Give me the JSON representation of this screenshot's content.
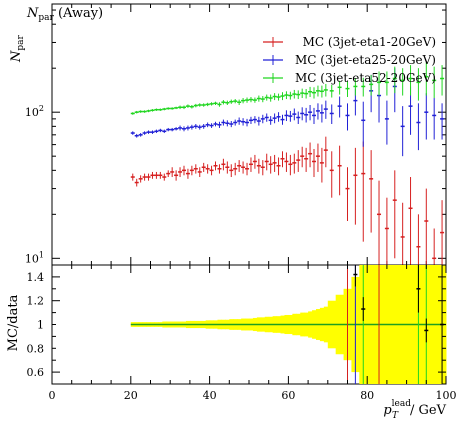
{
  "chart_data": [
    {
      "type": "scatter",
      "title_main": "N",
      "title_sub": "par",
      "title_rest": " (Away)",
      "ylabel_main": "N",
      "ylabel_sub": "par",
      "yscale": "log",
      "ylim": [
        9,
        550
      ],
      "xlim": [
        0,
        100
      ],
      "ytick_labels": [
        {
          "value": 10,
          "base": "10",
          "exp": "1"
        },
        {
          "value": 100,
          "base": "10",
          "exp": "2"
        }
      ],
      "legend_position": "top-right",
      "series": [
        {
          "name": "MC (3jet-eta1-20GeV)",
          "color": "#d62020",
          "x": [
            20.5,
            21.5,
            22.5,
            23.5,
            24.5,
            25.5,
            26.5,
            27.5,
            28.5,
            29.5,
            30.5,
            31.5,
            32.5,
            33.5,
            34.5,
            35.5,
            36.5,
            37.5,
            38.5,
            39.5,
            40.5,
            41.5,
            42.5,
            43.5,
            44.5,
            45.5,
            46.5,
            47.5,
            48.5,
            49.5,
            50.5,
            51.5,
            52.5,
            53.5,
            54.5,
            55.5,
            56.5,
            57.5,
            58.5,
            59.5,
            60.5,
            61.5,
            62.5,
            63.5,
            64.5,
            65.5,
            66.5,
            67.5,
            68.5,
            69.5,
            71,
            73,
            75,
            77,
            79,
            81,
            83,
            85,
            87,
            89,
            91,
            93,
            95,
            97,
            99
          ],
          "y": [
            36,
            33,
            35,
            36,
            36,
            37,
            37,
            37,
            36,
            38,
            39,
            37,
            39,
            40,
            38,
            40,
            41,
            39,
            42,
            41,
            40,
            43,
            41,
            44,
            42,
            40,
            41,
            43,
            42,
            41,
            44,
            46,
            43,
            42,
            46,
            44,
            45,
            43,
            48,
            46,
            44,
            45,
            47,
            50,
            48,
            52,
            46,
            50,
            45,
            55,
            40,
            43,
            30,
            37,
            38,
            35,
            20,
            16,
            25,
            14,
            22,
            12,
            18,
            10,
            15
          ],
          "err": [
            2,
            2,
            2,
            2,
            2,
            2,
            2,
            2,
            2,
            2,
            3,
            3,
            3,
            3,
            3,
            3,
            3,
            3,
            3,
            3,
            3,
            3,
            3,
            4,
            4,
            4,
            4,
            4,
            4,
            4,
            5,
            5,
            5,
            5,
            6,
            6,
            6,
            6,
            6,
            7,
            7,
            7,
            8,
            8,
            9,
            10,
            10,
            11,
            12,
            13,
            14,
            16,
            12,
            20,
            25,
            20,
            14,
            10,
            15,
            10,
            14,
            8,
            12,
            6,
            10
          ]
        },
        {
          "name": "MC (3jet-eta25-20GeV)",
          "color": "#2020d6",
          "x": [
            20.5,
            21.5,
            22.5,
            23.5,
            24.5,
            25.5,
            26.5,
            27.5,
            28.5,
            29.5,
            30.5,
            31.5,
            32.5,
            33.5,
            34.5,
            35.5,
            36.5,
            37.5,
            38.5,
            39.5,
            40.5,
            41.5,
            42.5,
            43.5,
            44.5,
            45.5,
            46.5,
            47.5,
            48.5,
            49.5,
            50.5,
            51.5,
            52.5,
            53.5,
            54.5,
            55.5,
            56.5,
            57.5,
            58.5,
            59.5,
            60.5,
            61.5,
            62.5,
            63.5,
            64.5,
            65.5,
            66.5,
            67.5,
            68.5,
            69.5,
            71,
            73,
            75,
            77,
            79,
            81,
            83,
            85,
            87,
            89,
            91,
            93,
            95,
            97,
            99
          ],
          "y": [
            72,
            69,
            70,
            72,
            73,
            73,
            74,
            75,
            74,
            76,
            76,
            77,
            78,
            77,
            78,
            79,
            80,
            79,
            80,
            82,
            81,
            83,
            82,
            85,
            84,
            83,
            85,
            87,
            86,
            85,
            88,
            89,
            87,
            90,
            92,
            88,
            91,
            93,
            89,
            95,
            94,
            97,
            92,
            98,
            96,
            100,
            95,
            102,
            99,
            105,
            98,
            110,
            95,
            120,
            88,
            140,
            130,
            90,
            150,
            80,
            110,
            85,
            100,
            95,
            90
          ],
          "err": [
            2,
            2,
            2,
            2,
            2,
            2,
            2,
            2,
            2,
            2,
            2,
            2,
            3,
            3,
            3,
            3,
            3,
            3,
            3,
            3,
            3,
            3,
            4,
            4,
            4,
            4,
            4,
            5,
            5,
            5,
            5,
            5,
            6,
            6,
            6,
            6,
            7,
            7,
            7,
            8,
            8,
            9,
            9,
            10,
            11,
            12,
            12,
            13,
            14,
            15,
            15,
            18,
            20,
            25,
            30,
            40,
            45,
            30,
            50,
            30,
            40,
            30,
            35,
            30,
            25
          ]
        },
        {
          "name": "MC (3jet-eta52-20GeV)",
          "color": "#20d620",
          "x": [
            20.5,
            21.5,
            22.5,
            23.5,
            24.5,
            25.5,
            26.5,
            27.5,
            28.5,
            29.5,
            30.5,
            31.5,
            32.5,
            33.5,
            34.5,
            35.5,
            36.5,
            37.5,
            38.5,
            39.5,
            40.5,
            41.5,
            42.5,
            43.5,
            44.5,
            45.5,
            46.5,
            47.5,
            48.5,
            49.5,
            50.5,
            51.5,
            52.5,
            53.5,
            54.5,
            55.5,
            56.5,
            57.5,
            58.5,
            59.5,
            60.5,
            61.5,
            62.5,
            63.5,
            64.5,
            65.5,
            66.5,
            67.5,
            68.5,
            69.5,
            71,
            73,
            75,
            77,
            79,
            81,
            83,
            85,
            87,
            89,
            91,
            93,
            95,
            97,
            99
          ],
          "y": [
            98,
            100,
            101,
            101,
            102,
            103,
            104,
            104,
            105,
            106,
            106,
            107,
            108,
            108,
            110,
            109,
            111,
            112,
            112,
            113,
            114,
            115,
            113,
            117,
            116,
            118,
            119,
            117,
            120,
            121,
            122,
            121,
            124,
            123,
            126,
            125,
            128,
            127,
            129,
            131,
            130,
            133,
            132,
            135,
            134,
            138,
            136,
            140,
            139,
            142,
            140,
            148,
            145,
            150,
            150,
            155,
            160,
            160,
            170,
            165,
            170,
            160,
            175,
            165,
            170
          ],
          "err": [
            2,
            2,
            2,
            2,
            2,
            2,
            2,
            2,
            2,
            2,
            2,
            2,
            3,
            3,
            3,
            3,
            3,
            3,
            3,
            3,
            3,
            3,
            4,
            4,
            4,
            4,
            4,
            5,
            5,
            5,
            5,
            5,
            6,
            6,
            6,
            7,
            7,
            7,
            8,
            8,
            8,
            9,
            9,
            10,
            10,
            11,
            12,
            12,
            13,
            14,
            14,
            16,
            18,
            20,
            22,
            25,
            30,
            30,
            35,
            35,
            40,
            40,
            45,
            40,
            40
          ]
        }
      ]
    },
    {
      "type": "scatter",
      "ylabel": "MC/data",
      "ylim": [
        0.5,
        1.5
      ],
      "xlim": [
        0,
        100
      ],
      "yticks": [
        "0.6",
        "0.8",
        "1",
        "1.2",
        "1.4"
      ],
      "xticks": [
        "0",
        "20",
        "40",
        "60",
        "80",
        "100"
      ],
      "xlabel_main": "p",
      "xlabel_sub": "T",
      "xlabel_sup": "lead",
      "xlabel_unit": "/ GeV",
      "reference_line": 1.0,
      "reference_color": "#20a020",
      "band_color": "#ffff00",
      "band": {
        "x": [
          20.5,
          21.5,
          22.5,
          23.5,
          24.5,
          25.5,
          26.5,
          27.5,
          28.5,
          29.5,
          30.5,
          31.5,
          32.5,
          33.5,
          34.5,
          35.5,
          36.5,
          37.5,
          38.5,
          39.5,
          40.5,
          41.5,
          42.5,
          43.5,
          44.5,
          45.5,
          46.5,
          47.5,
          48.5,
          49.5,
          50.5,
          51.5,
          52.5,
          53.5,
          54.5,
          55.5,
          56.5,
          57.5,
          58.5,
          59.5,
          60.5,
          61.5,
          62.5,
          63.5,
          64.5,
          65.5,
          66.5,
          67.5,
          68.5,
          69.5,
          71,
          73,
          75,
          77,
          79,
          81,
          83,
          85,
          87,
          89,
          91,
          93,
          95,
          97,
          99
        ],
        "half_width": [
          0.02,
          0.02,
          0.02,
          0.02,
          0.02,
          0.02,
          0.02,
          0.02,
          0.025,
          0.025,
          0.025,
          0.025,
          0.025,
          0.025,
          0.03,
          0.03,
          0.03,
          0.03,
          0.03,
          0.035,
          0.035,
          0.035,
          0.04,
          0.04,
          0.04,
          0.045,
          0.045,
          0.045,
          0.05,
          0.05,
          0.05,
          0.055,
          0.06,
          0.06,
          0.065,
          0.065,
          0.07,
          0.07,
          0.075,
          0.08,
          0.08,
          0.09,
          0.09,
          0.1,
          0.1,
          0.11,
          0.12,
          0.13,
          0.14,
          0.15,
          0.2,
          0.25,
          0.3,
          0.4,
          0.5,
          0.5,
          0.5,
          0.5,
          0.5,
          0.5,
          0.5,
          0.5,
          0.5,
          0.5,
          0.5
        ]
      },
      "points": {
        "x": [
          77,
          79,
          93,
          95,
          99
        ],
        "y": [
          1.42,
          1.13,
          1.3,
          0.95,
          1.0
        ],
        "err": [
          0.1,
          0.1,
          0.2,
          0.1,
          0.5
        ],
        "color": "#000000"
      }
    }
  ]
}
